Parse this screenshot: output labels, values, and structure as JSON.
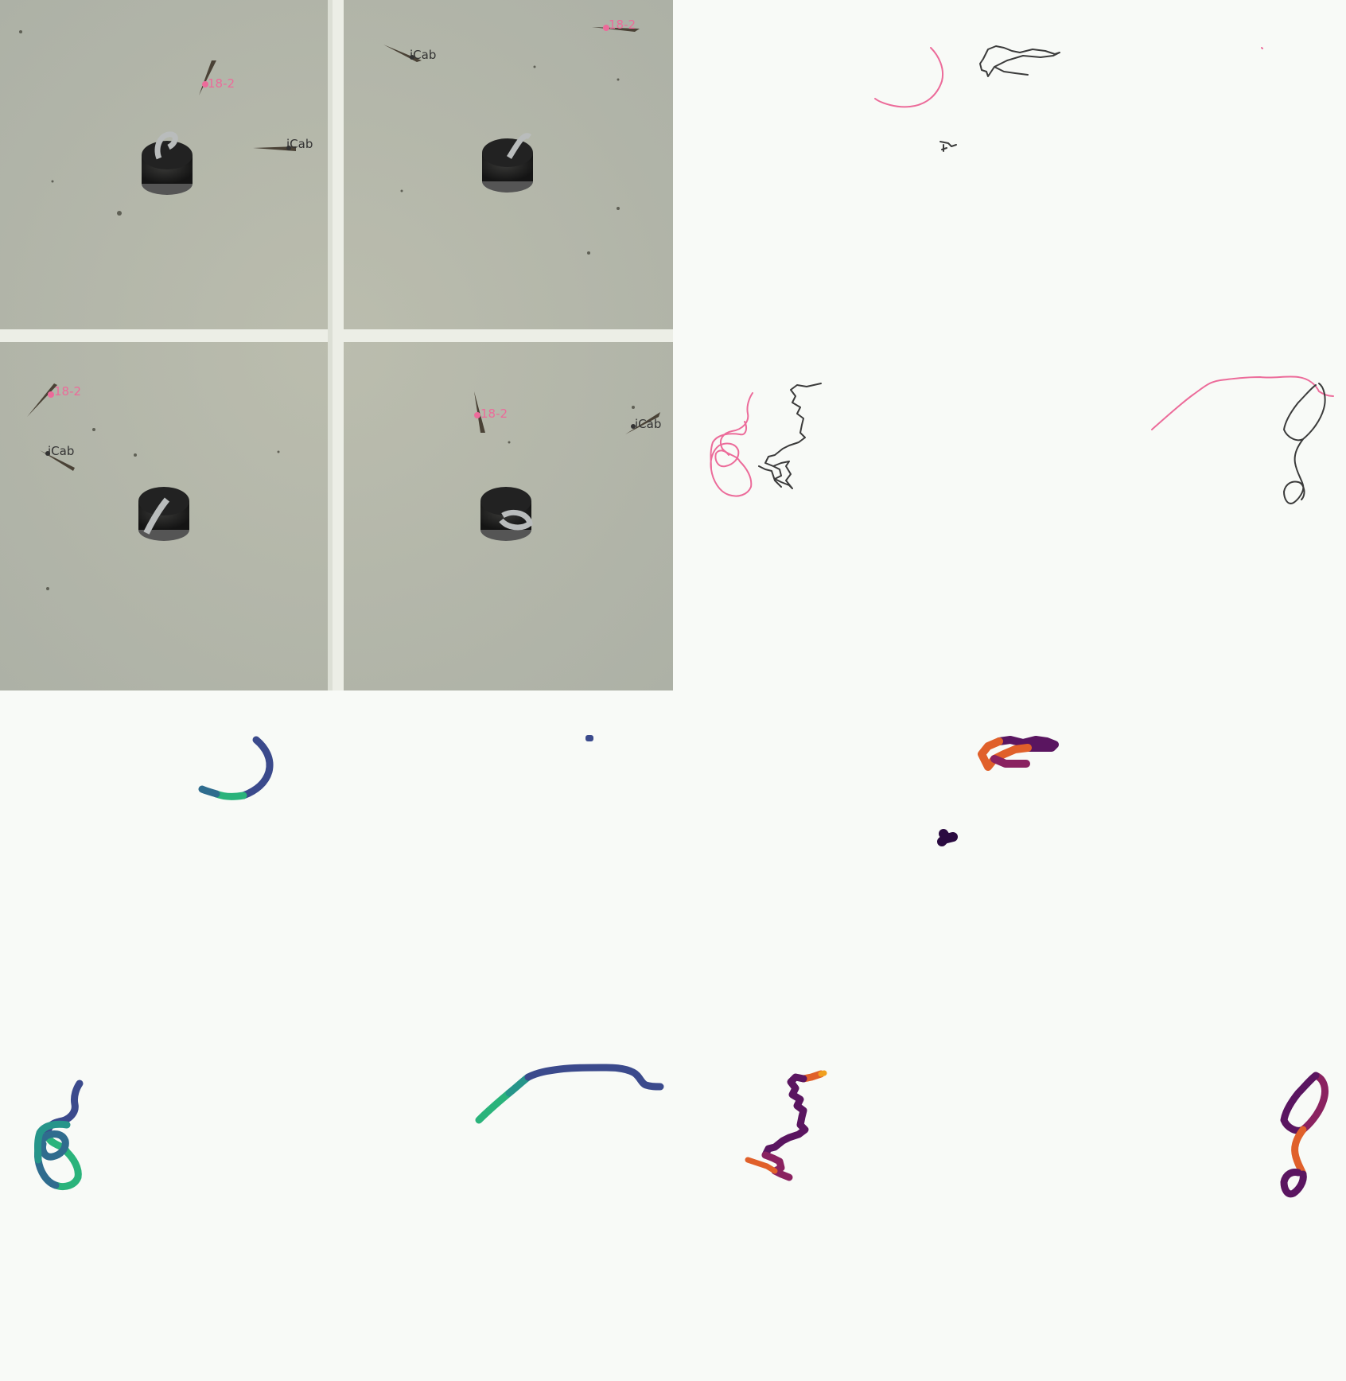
{
  "labels": {
    "strain_a": "iCab",
    "strain_b": "18-2"
  },
  "colors": {
    "strain_a_track": "#3b3b3b",
    "strain_b_track": "#ec6b9a",
    "arena_floor": "#b3b6a8",
    "arena_divider": "#eceee6",
    "background": "#f8faf7"
  },
  "colormaps": {
    "cool": [
      "#3b4a8c",
      "#2f6c8e",
      "#26958a",
      "#2ab37b"
    ],
    "warm": [
      "#2a0a40",
      "#5a1560",
      "#8a2260",
      "#e0602a",
      "#f0a020"
    ]
  }
}
